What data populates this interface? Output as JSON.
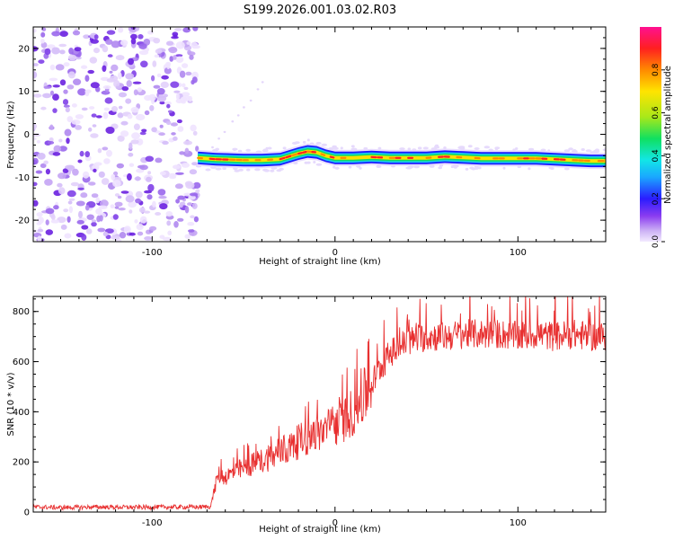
{
  "title": "S199.2026.001.03.02.R03",
  "chart_data": [
    {
      "type": "heatmap",
      "name": "spectrogram",
      "xlabel": "Height of straight line (km)",
      "ylabel": "Frequency (Hz)",
      "xlim": [
        -165,
        148
      ],
      "ylim": [
        -25,
        25
      ],
      "xticks": [
        -100,
        0,
        100
      ],
      "xtick_labels": [
        "-100",
        "0",
        "100"
      ],
      "yticks": [
        -20,
        -10,
        0,
        10,
        20
      ],
      "ytick_labels": [
        "-20",
        "-10",
        "0",
        "10",
        "20"
      ],
      "noise_region_x": [
        -165,
        -75
      ],
      "ridge": {
        "x": [
          -75,
          -65,
          -50,
          -40,
          -30,
          -20,
          -15,
          -10,
          -5,
          0,
          10,
          20,
          30,
          40,
          50,
          60,
          70,
          80,
          90,
          100,
          110,
          120,
          130,
          140,
          148
        ],
        "frequency": [
          -5.5,
          -5.8,
          -6.0,
          -6.0,
          -5.8,
          -4.5,
          -4.0,
          -4.2,
          -5.0,
          -5.5,
          -5.5,
          -5.3,
          -5.5,
          -5.5,
          -5.5,
          -5.2,
          -5.4,
          -5.6,
          -5.6,
          -5.6,
          -5.6,
          -5.8,
          -6.0,
          -6.2,
          -6.2
        ]
      },
      "colorbar": {
        "label": "Normalized spectral amplitude",
        "range": [
          0,
          1
        ],
        "ticks": [
          0.0,
          0.2,
          0.4,
          0.6,
          0.8
        ],
        "tick_labels": [
          "0.0",
          "0.2",
          "0.4",
          "0.6",
          "0.8"
        ]
      }
    },
    {
      "type": "line",
      "name": "snr",
      "xlabel": "Height of straight line (km)",
      "ylabel": "SNR (10 * v/v)",
      "xlim": [
        -165,
        148
      ],
      "ylim": [
        0,
        860
      ],
      "xticks": [
        -100,
        0,
        100
      ],
      "xtick_labels": [
        "-100",
        "0",
        "100"
      ],
      "yticks": [
        0,
        200,
        400,
        600,
        800
      ],
      "ytick_labels": [
        "0",
        "200",
        "400",
        "600",
        "800"
      ],
      "color": "#e83030",
      "series": [
        {
          "name": "SNR",
          "x": [
            -165,
            -150,
            -130,
            -110,
            -90,
            -75,
            -68,
            -64,
            -60,
            -55,
            -50,
            -45,
            -40,
            -35,
            -30,
            -25,
            -20,
            -15,
            -10,
            -5,
            0,
            5,
            10,
            15,
            20,
            25,
            30,
            35,
            40,
            45,
            50,
            60,
            70,
            80,
            90,
            100,
            110,
            120,
            130,
            140,
            148
          ],
          "y": [
            20,
            18,
            20,
            19,
            20,
            20,
            22,
            150,
            140,
            160,
            175,
            190,
            205,
            220,
            235,
            255,
            280,
            300,
            310,
            330,
            345,
            370,
            400,
            450,
            510,
            580,
            630,
            660,
            680,
            690,
            700,
            700,
            710,
            710,
            710,
            700,
            710,
            700,
            710,
            700,
            700
          ]
        }
      ]
    }
  ]
}
